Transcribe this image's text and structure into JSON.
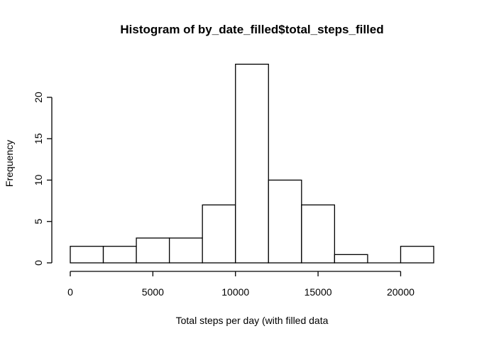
{
  "chart_data": {
    "type": "bar",
    "title": "Histogram of by_date_filled$total_steps_filled",
    "xlabel": "Total steps per day (with filled data",
    "ylabel": "Frequency",
    "bins": [
      {
        "start": 0,
        "end": 2000,
        "count": 2
      },
      {
        "start": 2000,
        "end": 4000,
        "count": 2
      },
      {
        "start": 4000,
        "end": 6000,
        "count": 3
      },
      {
        "start": 6000,
        "end": 8000,
        "count": 3
      },
      {
        "start": 8000,
        "end": 10000,
        "count": 7
      },
      {
        "start": 10000,
        "end": 12000,
        "count": 24
      },
      {
        "start": 12000,
        "end": 14000,
        "count": 10
      },
      {
        "start": 14000,
        "end": 16000,
        "count": 7
      },
      {
        "start": 16000,
        "end": 18000,
        "count": 1
      },
      {
        "start": 18000,
        "end": 20000,
        "count": 0
      },
      {
        "start": 20000,
        "end": 22000,
        "count": 2
      }
    ],
    "x_ticks": [
      0,
      5000,
      10000,
      15000,
      20000
    ],
    "y_ticks": [
      0,
      5,
      10,
      15,
      20
    ],
    "xlim": [
      0,
      22000
    ],
    "ylim": [
      0,
      24
    ],
    "grid": false
  }
}
